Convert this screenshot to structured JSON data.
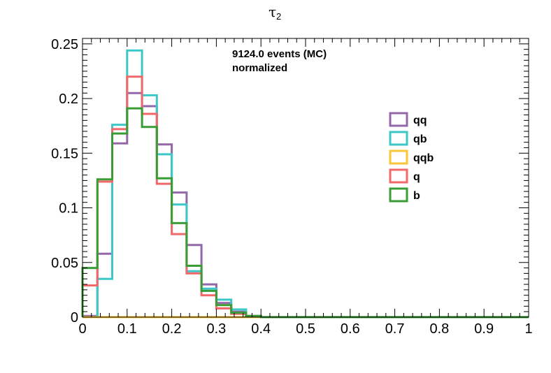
{
  "chart_data": {
    "type": "step-histogram",
    "title": "τ",
    "title_subscript": "2",
    "xlim": [
      0,
      1
    ],
    "ylim": [
      0,
      0.255
    ],
    "x_ticks": [
      "0",
      "0.1",
      "0.2",
      "0.3",
      "0.4",
      "0.5",
      "0.6",
      "0.7",
      "0.8",
      "0.9",
      "1"
    ],
    "y_ticks": [
      "0",
      "0.05",
      "0.1",
      "0.15",
      "0.2",
      "0.25"
    ],
    "annotations": [
      "9124.0 events (MC)",
      "normalized"
    ],
    "bin_width": 0.0333,
    "series": [
      {
        "name": "qq",
        "color": "#9467a8",
        "values": [
          0.001,
          0.058,
          0.159,
          0.205,
          0.193,
          0.158,
          0.114,
          0.066,
          0.03,
          0.013,
          0.005,
          0.001,
          0,
          0,
          0,
          0,
          0,
          0,
          0,
          0,
          0,
          0,
          0,
          0,
          0,
          0,
          0,
          0,
          0,
          0
        ]
      },
      {
        "name": "qb",
        "color": "#3cc8c8",
        "values": [
          0,
          0.035,
          0.176,
          0.244,
          0.203,
          0.149,
          0.103,
          0.042,
          0.026,
          0.016,
          0.007,
          0.001,
          0,
          0,
          0,
          0,
          0,
          0,
          0,
          0,
          0,
          0,
          0,
          0,
          0,
          0,
          0,
          0,
          0,
          0
        ]
      },
      {
        "name": "qqb",
        "color": "#f7c738",
        "values": [
          0,
          0,
          0,
          0,
          0,
          0,
          0,
          0,
          0,
          0,
          0,
          0,
          0,
          0,
          0,
          0,
          0,
          0,
          0,
          0,
          0,
          0,
          0,
          0,
          0,
          0,
          0,
          0,
          0,
          0
        ]
      },
      {
        "name": "q",
        "color": "#f0686a",
        "values": [
          0.029,
          0.124,
          0.172,
          0.22,
          0.186,
          0.122,
          0.076,
          0.04,
          0.02,
          0.008,
          0.003,
          0.001,
          0,
          0,
          0,
          0,
          0,
          0,
          0,
          0,
          0,
          0,
          0,
          0,
          0,
          0,
          0,
          0,
          0,
          0
        ]
      },
      {
        "name": "b",
        "color": "#3a9c34",
        "values": [
          0.045,
          0.126,
          0.168,
          0.191,
          0.174,
          0.127,
          0.086,
          0.047,
          0.024,
          0.011,
          0.004,
          0.001,
          0,
          0,
          0,
          0,
          0,
          0,
          0,
          0,
          0,
          0,
          0,
          0,
          0,
          0,
          0,
          0,
          0,
          0
        ]
      }
    ]
  }
}
